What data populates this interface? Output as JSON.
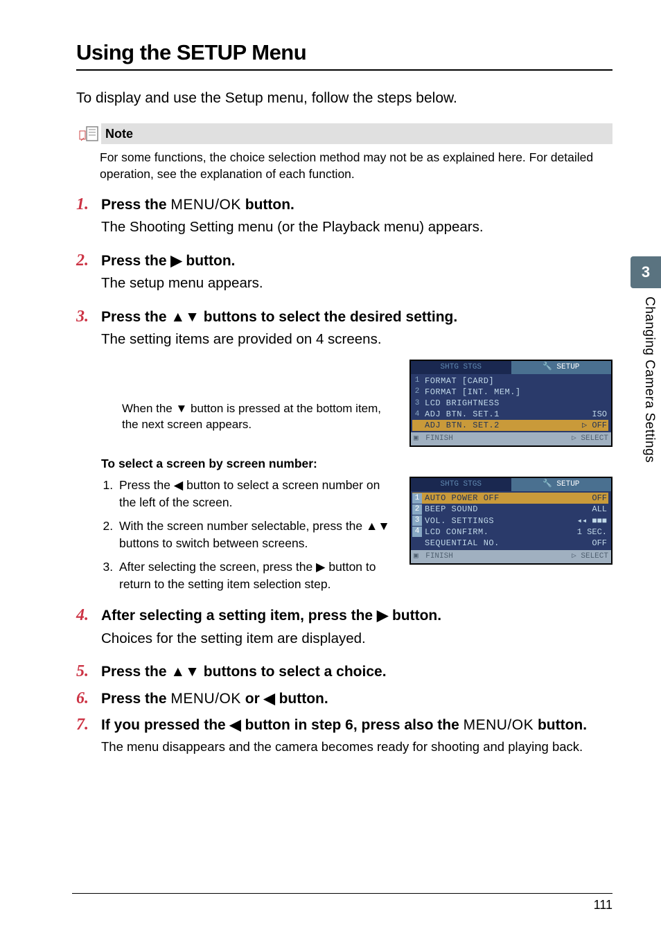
{
  "page_title": "Using the SETUP Menu",
  "intro": "To display and use the Setup menu, follow the steps below.",
  "note_label": "Note",
  "note_body": "For some functions, the choice selection method may not be as explained here. For detailed operation, see the explanation of each function.",
  "steps": {
    "s1_num": "1.",
    "s1_head_a": "Press the ",
    "s1_head_b": "MENU/OK",
    "s1_head_c": " button.",
    "s1_desc": "The Shooting Setting menu (or the Playback menu) appears.",
    "s2_num": "2.",
    "s2_head_a": "Press the ",
    "s2_head_c": " button.",
    "s2_desc": "The setup menu appears.",
    "s3_num": "3.",
    "s3_head_a": "Press the ",
    "s3_head_c": " buttons to select the desired setting.",
    "s3_desc": "The setting items are provided on 4 screens.",
    "s3_subnote": "When the ▼ button is pressed at the bottom item, the next screen appears.",
    "s4_num": "4.",
    "s4_head_a": "After selecting a setting item, press the ",
    "s4_head_c": " button.",
    "s4_desc": "Choices for the setting item are displayed.",
    "s5_num": "5.",
    "s5_head_a": "Press the ",
    "s5_head_c": " buttons to select a choice.",
    "s6_num": "6.",
    "s6_head_a": "Press the ",
    "s6_head_b": "MENU/OK",
    "s6_head_c": " or ",
    "s6_head_d": " button.",
    "s7_num": "7.",
    "s7_head_a": "If you pressed the ",
    "s7_head_b": " button in step 6, press also the ",
    "s7_head_c": "MENU/OK",
    "s7_head_d": " button.",
    "s7_desc": "The menu disappears and the camera becomes ready for shooting and playing back."
  },
  "subsection": {
    "head": "To select a screen by screen number:",
    "i1a": "Press the ",
    "i1b": " button to select a screen number on the left of the screen.",
    "i2a": "With the screen number selectable, press the ",
    "i2b": " buttons to switch between screens.",
    "i3a": "After selecting the screen, press the ",
    "i3b": " button to return to the setting item selection step."
  },
  "screenshot1": {
    "tab_left": "SHTG STGS",
    "tab_right": "SETUP",
    "rows": [
      {
        "idx": "1",
        "label": "FORMAT [CARD]",
        "val": ""
      },
      {
        "idx": "2",
        "label": "FORMAT [INT. MEM.]",
        "val": ""
      },
      {
        "idx": "3",
        "label": "LCD BRIGHTNESS",
        "val": ""
      },
      {
        "idx": "4",
        "label": "ADJ BTN. SET.1",
        "val": "ISO"
      },
      {
        "idx": "",
        "label": "ADJ BTN. SET.2",
        "val": "▷ OFF"
      }
    ],
    "foot_left": "FINISH",
    "foot_right": "▷ SELECT",
    "hl_index": 4,
    "colors": {
      "bg": "#2a4060",
      "text": "#b8d4e8",
      "hl": "#c99a3a",
      "foot": "#9fb0c0"
    }
  },
  "screenshot2": {
    "tab_left": "SHTG STGS",
    "tab_right": "SETUP",
    "rows": [
      {
        "idx": "1",
        "label": "AUTO POWER OFF",
        "val": "OFF"
      },
      {
        "idx": "2",
        "label": "BEEP SOUND",
        "val": "ALL"
      },
      {
        "idx": "3",
        "label": "VOL. SETTINGS",
        "val": "◂◂ ■■■"
      },
      {
        "idx": "4",
        "label": "LCD CONFIRM.",
        "val": "1 SEC."
      },
      {
        "idx": "",
        "label": "SEQUENTIAL NO.",
        "val": "OFF"
      }
    ],
    "foot_left": "FINISH",
    "foot_right": "▷ SELECT",
    "hl_index": 0,
    "colors": {
      "bg": "#2a4060",
      "text": "#b8d4e8",
      "hl": "#c99a3a",
      "foot": "#9fb0c0"
    }
  },
  "sidebar": {
    "num": "3",
    "label": "Changing Camera Settings"
  },
  "page_number": "111",
  "glyphs": {
    "right": "▶",
    "left": "◀",
    "up": "▲",
    "down": "▼",
    "updown": "▲▼"
  },
  "colors": {
    "accent_step": "#cc3344",
    "side_tab": "#5a7380"
  }
}
